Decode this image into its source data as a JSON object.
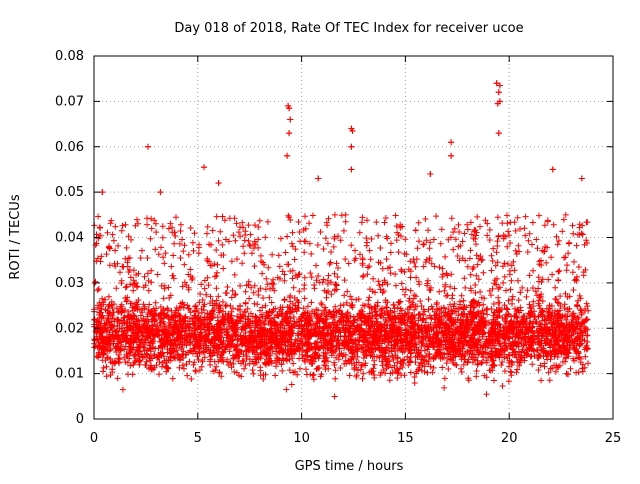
{
  "chart_data": {
    "type": "scatter",
    "title": "Day 018 of 2018, Rate Of TEC Index for receiver ucoe",
    "xlabel": "GPS time / hours",
    "ylabel": "ROTI / TECUs",
    "xlim": [
      0,
      25
    ],
    "ylim": [
      0,
      0.08
    ],
    "x_ticks": [
      "0",
      "5",
      "10",
      "15",
      "20",
      "25"
    ],
    "y_ticks": [
      "0",
      "0.01",
      "0.02",
      "0.03",
      "0.04",
      "0.05",
      "0.06",
      "0.07",
      "0.08"
    ],
    "x_tick_values": [
      0,
      5,
      10,
      15,
      20,
      25
    ],
    "y_tick_values": [
      0,
      0.01,
      0.02,
      0.03,
      0.04,
      0.05,
      0.06,
      0.07,
      0.08
    ],
    "grid": true,
    "marker": "+",
    "marker_color": "#ff0000",
    "data_x_range": [
      0,
      23.8
    ],
    "series": [
      {
        "name": "ROTI",
        "color": "#ff0000",
        "notable_points": [
          {
            "x": 2.6,
            "y": 0.06
          },
          {
            "x": 5.3,
            "y": 0.0555
          },
          {
            "x": 6.0,
            "y": 0.052
          },
          {
            "x": 9.35,
            "y": 0.069
          },
          {
            "x": 9.4,
            "y": 0.0685
          },
          {
            "x": 9.45,
            "y": 0.066
          },
          {
            "x": 9.4,
            "y": 0.063
          },
          {
            "x": 9.3,
            "y": 0.058
          },
          {
            "x": 12.4,
            "y": 0.064
          },
          {
            "x": 12.45,
            "y": 0.0635
          },
          {
            "x": 12.4,
            "y": 0.06
          },
          {
            "x": 12.4,
            "y": 0.055
          },
          {
            "x": 17.2,
            "y": 0.061
          },
          {
            "x": 17.2,
            "y": 0.058
          },
          {
            "x": 19.4,
            "y": 0.074
          },
          {
            "x": 19.55,
            "y": 0.0735
          },
          {
            "x": 19.5,
            "y": 0.072
          },
          {
            "x": 19.55,
            "y": 0.07
          },
          {
            "x": 19.45,
            "y": 0.0695
          },
          {
            "x": 19.5,
            "y": 0.063
          },
          {
            "x": 22.1,
            "y": 0.055
          },
          {
            "x": 0.4,
            "y": 0.05
          },
          {
            "x": 3.2,
            "y": 0.05
          },
          {
            "x": 10.8,
            "y": 0.053
          },
          {
            "x": 16.2,
            "y": 0.054
          },
          {
            "x": 23.5,
            "y": 0.053
          }
        ]
      }
    ]
  }
}
